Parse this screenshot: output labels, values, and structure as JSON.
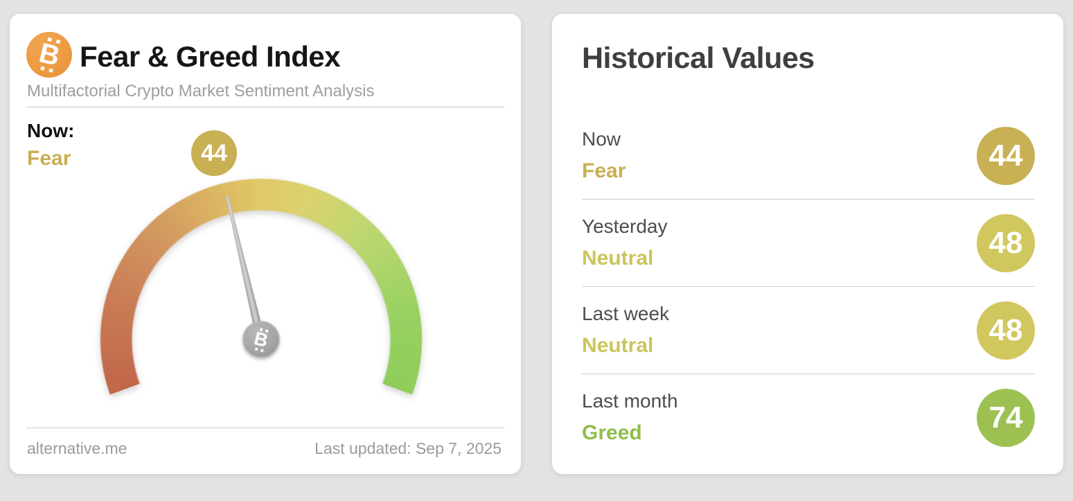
{
  "gauge_card": {
    "title": "Fear & Greed Index",
    "subtitle": "Multifactorial Crypto Market Sentiment Analysis",
    "now_label": "Now:",
    "now_sentiment": "Fear",
    "now_value": "44",
    "now_sentiment_color": "#c9af52",
    "now_badge_color": "#c8b054",
    "footer_source": "alternative.me",
    "footer_updated": "Last updated: Sep 7, 2025",
    "bitcoin_symbol": "B",
    "brand_orange": "#ec9a41"
  },
  "historical_card": {
    "title": "Historical Values",
    "rows": [
      {
        "label": "Now",
        "sentiment": "Fear",
        "value": "44",
        "sentiment_color": "#c9af52",
        "badge_color": "#c8b054"
      },
      {
        "label": "Yesterday",
        "sentiment": "Neutral",
        "value": "48",
        "sentiment_color": "#cdc45c",
        "badge_color": "#d1c75f"
      },
      {
        "label": "Last week",
        "sentiment": "Neutral",
        "value": "48",
        "sentiment_color": "#cdc45c",
        "badge_color": "#d1c75f"
      },
      {
        "label": "Last month",
        "sentiment": "Greed",
        "value": "74",
        "sentiment_color": "#8ebe4b",
        "badge_color": "#9cc152"
      }
    ]
  },
  "chart_data": {
    "type": "gauge",
    "title": "Fear & Greed Index",
    "value": 44,
    "classification": "Fear",
    "min": 0,
    "max": 100,
    "sweep_deg": 220,
    "scale_colors": [
      "#c1664a",
      "#d29760",
      "#e0c968",
      "#bcd76f",
      "#8ecd5a"
    ],
    "needle_color": "#9b9b9b",
    "historical": [
      {
        "period": "Now",
        "value": 44,
        "classification": "Fear"
      },
      {
        "period": "Yesterday",
        "value": 48,
        "classification": "Neutral"
      },
      {
        "period": "Last week",
        "value": 48,
        "classification": "Neutral"
      },
      {
        "period": "Last month",
        "value": 74,
        "classification": "Greed"
      }
    ],
    "last_updated": "Sep 7, 2025",
    "source": "alternative.me"
  }
}
